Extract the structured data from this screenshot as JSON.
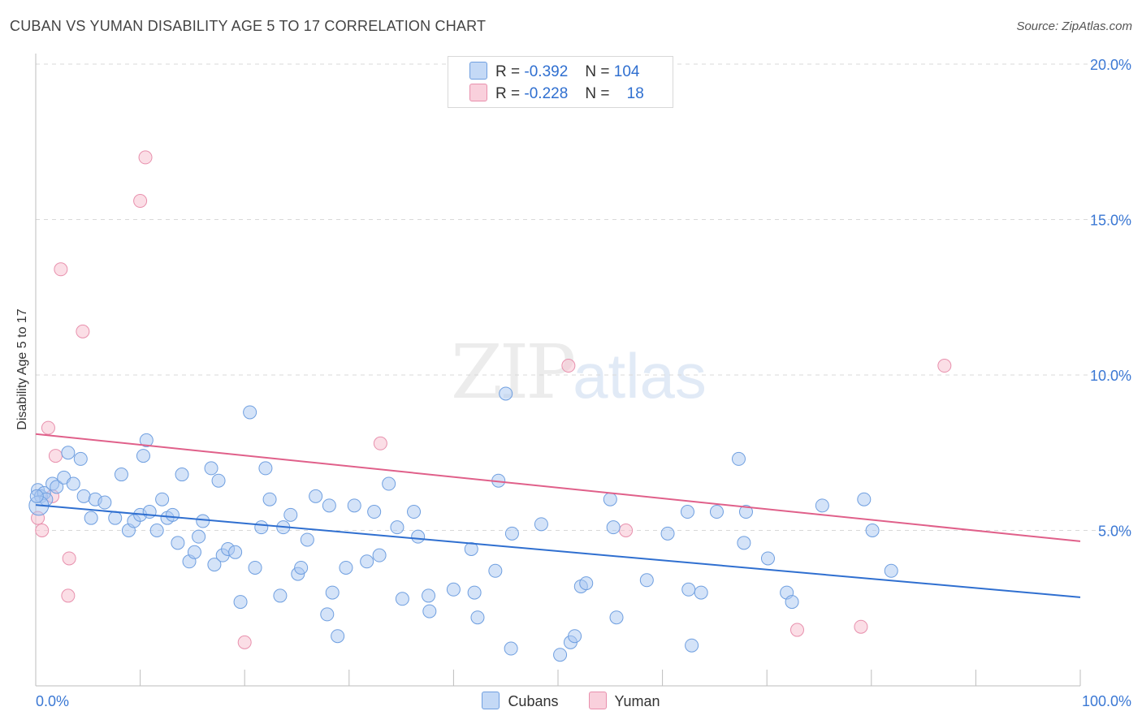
{
  "header": {
    "title": "CUBAN VS YUMAN DISABILITY AGE 5 TO 17 CORRELATION CHART",
    "source": "Source: ZipAtlas.com"
  },
  "watermark": {
    "zip": "ZIP",
    "atlas": "atlas"
  },
  "legend": {
    "rows": [
      {
        "r_label": "R =",
        "r_value": "-0.392",
        "n_label": "N =",
        "n_value": "104",
        "color": "#a9c8f2"
      },
      {
        "r_label": "R =",
        "r_value": "-0.228",
        "n_label": "N =",
        "n_value": "18",
        "color": "#f7b8cc"
      }
    ]
  },
  "bottom_legend": {
    "cubans": "Cubans",
    "yuman": "Yuman"
  },
  "colors": {
    "cubans_fill": "#a9c8f2",
    "cubans_stroke": "#6f9fe0",
    "cubans_line": "#2f6fd0",
    "yuman_fill": "#f7c2d2",
    "yuman_stroke": "#e890ad",
    "yuman_line": "#e0608a",
    "tick_label": "#3b78d4"
  },
  "chart_data": {
    "type": "scatter",
    "title": "CUBAN VS YUMAN DISABILITY AGE 5 TO 17 CORRELATION CHART",
    "xlabel": "",
    "ylabel": "Disability Age 5 to 17",
    "xlim": [
      0,
      100
    ],
    "ylim": [
      0,
      20
    ],
    "x_tick_labels": [
      "0.0%",
      "100.0%"
    ],
    "y_ticks": [
      5,
      10,
      15,
      20
    ],
    "y_tick_labels": [
      "5.0%",
      "10.0%",
      "15.0%",
      "20.0%"
    ],
    "grid": "horizontal dashed",
    "legend_position": "top-center",
    "series": [
      {
        "name": "Cubans",
        "r": -0.392,
        "n": 104,
        "trend": [
          [
            0,
            5.82
          ],
          [
            100,
            2.85
          ]
        ],
        "points": [
          [
            0.2,
            6.3
          ],
          [
            0.5,
            6.1
          ],
          [
            0.8,
            6.2
          ],
          [
            1.0,
            6.0
          ],
          [
            1.6,
            6.5
          ],
          [
            2.0,
            6.4
          ],
          [
            2.7,
            6.7
          ],
          [
            3.1,
            7.5
          ],
          [
            3.6,
            6.5
          ],
          [
            4.3,
            7.3
          ],
          [
            4.6,
            6.1
          ],
          [
            5.3,
            5.4
          ],
          [
            5.7,
            6.0
          ],
          [
            6.6,
            5.9
          ],
          [
            7.6,
            5.4
          ],
          [
            8.2,
            6.8
          ],
          [
            8.9,
            5.0
          ],
          [
            9.4,
            5.3
          ],
          [
            10.0,
            5.5
          ],
          [
            10.3,
            7.4
          ],
          [
            10.6,
            7.9
          ],
          [
            10.9,
            5.6
          ],
          [
            11.6,
            5.0
          ],
          [
            12.1,
            6.0
          ],
          [
            12.6,
            5.4
          ],
          [
            13.1,
            5.5
          ],
          [
            13.6,
            4.6
          ],
          [
            14.0,
            6.8
          ],
          [
            14.7,
            4.0
          ],
          [
            15.2,
            4.3
          ],
          [
            15.6,
            4.8
          ],
          [
            16.0,
            5.3
          ],
          [
            16.8,
            7.0
          ],
          [
            17.1,
            3.9
          ],
          [
            17.5,
            6.6
          ],
          [
            17.9,
            4.2
          ],
          [
            18.4,
            4.4
          ],
          [
            19.1,
            4.3
          ],
          [
            19.6,
            2.7
          ],
          [
            20.5,
            8.8
          ],
          [
            21.0,
            3.8
          ],
          [
            21.6,
            5.1
          ],
          [
            22.0,
            7.0
          ],
          [
            22.4,
            6.0
          ],
          [
            23.4,
            2.9
          ],
          [
            23.7,
            5.1
          ],
          [
            24.4,
            5.5
          ],
          [
            25.1,
            3.6
          ],
          [
            25.4,
            3.8
          ],
          [
            26.0,
            4.7
          ],
          [
            26.8,
            6.1
          ],
          [
            27.9,
            2.3
          ],
          [
            28.1,
            5.8
          ],
          [
            28.4,
            3.0
          ],
          [
            28.9,
            1.6
          ],
          [
            29.7,
            3.8
          ],
          [
            30.5,
            5.8
          ],
          [
            31.7,
            4.0
          ],
          [
            32.4,
            5.6
          ],
          [
            32.9,
            4.2
          ],
          [
            33.8,
            6.5
          ],
          [
            34.6,
            5.1
          ],
          [
            35.1,
            2.8
          ],
          [
            36.2,
            5.6
          ],
          [
            36.6,
            4.8
          ],
          [
            37.6,
            2.9
          ],
          [
            37.7,
            2.4
          ],
          [
            40.0,
            3.1
          ],
          [
            41.7,
            4.4
          ],
          [
            42.0,
            3.0
          ],
          [
            42.3,
            2.2
          ],
          [
            44.0,
            3.7
          ],
          [
            44.3,
            6.6
          ],
          [
            45.0,
            9.4
          ],
          [
            45.5,
            1.2
          ],
          [
            45.6,
            4.9
          ],
          [
            48.4,
            5.2
          ],
          [
            50.2,
            1.0
          ],
          [
            51.2,
            1.4
          ],
          [
            51.6,
            1.6
          ],
          [
            52.2,
            3.2
          ],
          [
            52.7,
            3.3
          ],
          [
            55.0,
            6.0
          ],
          [
            55.3,
            5.1
          ],
          [
            55.6,
            2.2
          ],
          [
            58.5,
            3.4
          ],
          [
            60.5,
            4.9
          ],
          [
            62.4,
            5.6
          ],
          [
            62.8,
            1.3
          ],
          [
            62.5,
            3.1
          ],
          [
            63.7,
            3.0
          ],
          [
            65.2,
            5.6
          ],
          [
            67.3,
            7.3
          ],
          [
            67.8,
            4.6
          ],
          [
            68.0,
            5.6
          ],
          [
            70.1,
            4.1
          ],
          [
            71.9,
            3.0
          ],
          [
            72.4,
            2.7
          ],
          [
            75.3,
            5.8
          ],
          [
            79.3,
            6.0
          ],
          [
            80.1,
            5.0
          ],
          [
            81.9,
            3.7
          ],
          [
            0.3,
            5.8
          ],
          [
            0.1,
            6.1
          ]
        ]
      },
      {
        "name": "Yuman",
        "r": -0.228,
        "n": 18,
        "trend": [
          [
            0,
            8.1
          ],
          [
            100,
            4.65
          ]
        ],
        "points": [
          [
            0.2,
            5.4
          ],
          [
            0.6,
            5.0
          ],
          [
            1.2,
            8.3
          ],
          [
            1.6,
            6.1
          ],
          [
            1.9,
            7.4
          ],
          [
            2.4,
            13.4
          ],
          [
            3.1,
            2.9
          ],
          [
            3.2,
            4.1
          ],
          [
            4.5,
            11.4
          ],
          [
            10.0,
            15.6
          ],
          [
            10.5,
            17.0
          ],
          [
            20.0,
            1.4
          ],
          [
            33.0,
            7.8
          ],
          [
            51.0,
            10.3
          ],
          [
            56.5,
            5.0
          ],
          [
            72.9,
            1.8
          ],
          [
            79.0,
            1.9
          ],
          [
            87.0,
            10.3
          ]
        ]
      }
    ]
  }
}
